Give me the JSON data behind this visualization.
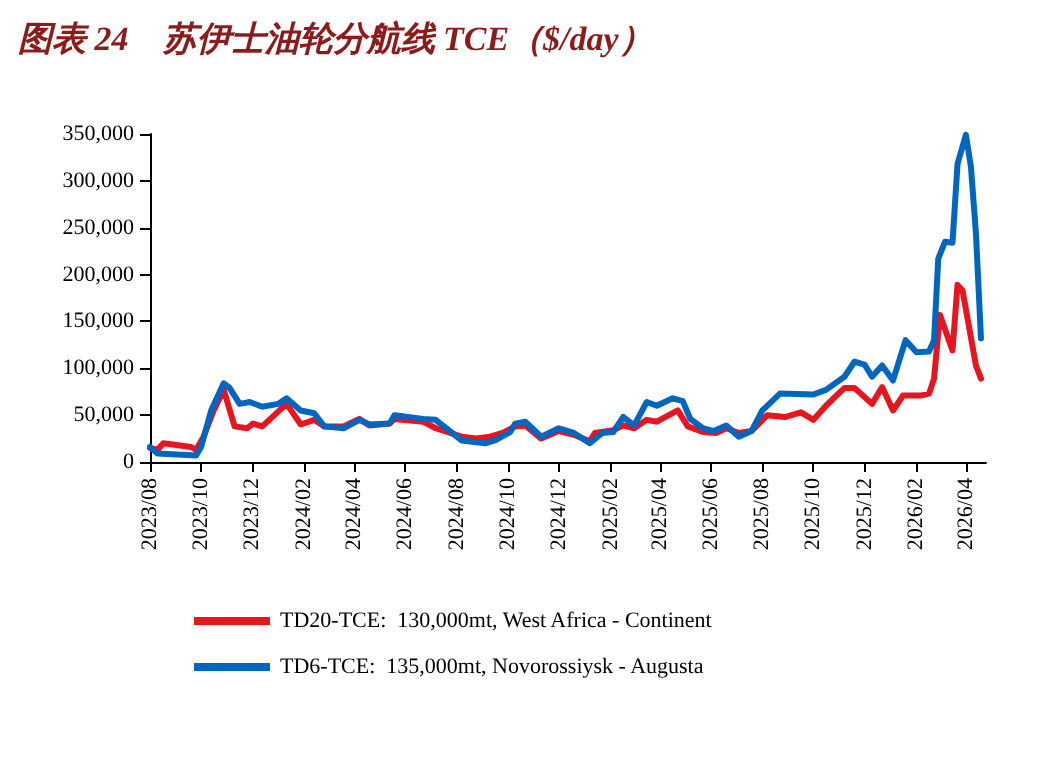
{
  "chart_data": {
    "type": "line",
    "title": "图表 24　苏伊士油轮分航线 TCE（$/day）",
    "xlim": [
      "2023-08-01",
      "2026-04-25"
    ],
    "xticks": [
      {
        "value": "2023-08",
        "label": "2023/08"
      },
      {
        "value": "2023-10",
        "label": "2023/10"
      },
      {
        "value": "2023-12",
        "label": "2023/12"
      },
      {
        "value": "2024-02",
        "label": "2024/02"
      },
      {
        "value": "2024-04",
        "label": "2024/04"
      },
      {
        "value": "2024-06",
        "label": "2024/06"
      },
      {
        "value": "2024-08",
        "label": "2024/08"
      },
      {
        "value": "2024-10",
        "label": "2024/10"
      },
      {
        "value": "2024-12",
        "label": "2024/12"
      },
      {
        "value": "2025-02",
        "label": "2025/02"
      },
      {
        "value": "2025-04",
        "label": "2025/04"
      },
      {
        "value": "2025-06",
        "label": "2025/06"
      },
      {
        "value": "2025-08",
        "label": "2025/08"
      },
      {
        "value": "2025-10",
        "label": "2025/10"
      },
      {
        "value": "2025-12",
        "label": "2025/12"
      },
      {
        "value": "2026-02",
        "label": "2026/02"
      },
      {
        "value": "2026-04",
        "label": "2026/04"
      }
    ],
    "ylim": [
      0,
      350000
    ],
    "yticks": [
      0,
      {
        "value": 50000,
        "label": "50,000"
      },
      {
        "value": 100000,
        "label": "100,000"
      },
      {
        "value": 150000,
        "label": "150,000"
      },
      {
        "value": 200000,
        "label": "200,000"
      },
      {
        "value": 250000,
        "label": "250,000"
      },
      {
        "value": 300000,
        "label": "300,000"
      },
      {
        "value": 350000,
        "label": "350,000"
      }
    ],
    "grid": false,
    "legend": "bottom",
    "marker": "none",
    "line_style": "solid",
    "series": [
      {
        "name": "TD20-TCE:  130,000mt, West Africa - Continent",
        "color": "#e8141e",
        "x": [
          "2023-08-01",
          "2023-08-10",
          "2023-08-17",
          "2023-09-19",
          "2023-09-25",
          "2023-10-04",
          "2023-10-16",
          "2023-10-28",
          "2023-11-10",
          "2023-11-25",
          "2023-12-02",
          "2023-12-13",
          "2024-01-11",
          "2024-01-28",
          "2024-02-13",
          "2024-02-25",
          "2024-03-19",
          "2024-04-07",
          "2024-04-19",
          "2024-05-13",
          "2024-05-19",
          "2024-06-22",
          "2024-07-07",
          "2024-08-07",
          "2024-08-25",
          "2024-09-10",
          "2024-09-25",
          "2024-10-10",
          "2024-10-22",
          "2024-11-10",
          "2024-12-01",
          "2024-12-19",
          "2025-01-07",
          "2025-01-13",
          "2025-02-04",
          "2025-02-16",
          "2025-03-01",
          "2025-03-16",
          "2025-03-28",
          "2025-04-22",
          "2025-05-04",
          "2025-05-22",
          "2025-06-07",
          "2025-06-19",
          "2025-07-04",
          "2025-07-19",
          "2025-08-07",
          "2025-08-28",
          "2025-09-16",
          "2025-10-01",
          "2025-10-16",
          "2025-11-07",
          "2025-11-19",
          "2025-12-10",
          "2025-12-22",
          "2026-01-04",
          "2026-01-16",
          "2026-02-07",
          "2026-02-16",
          "2026-02-22",
          "2026-03-01",
          "2026-03-16",
          "2026-03-22",
          "2026-03-28",
          "2026-04-13",
          "2026-04-19"
        ],
        "values": [
          15000,
          13000,
          20000,
          16000,
          13000,
          27000,
          55000,
          77000,
          38000,
          36000,
          41000,
          38000,
          62000,
          40000,
          45000,
          38000,
          38000,
          46000,
          39000,
          41000,
          46000,
          43000,
          36000,
          27000,
          25000,
          27000,
          31000,
          38000,
          39000,
          25000,
          33000,
          29000,
          22000,
          31000,
          34000,
          39000,
          36000,
          45000,
          43000,
          55000,
          38000,
          32000,
          31000,
          36000,
          31000,
          33000,
          50000,
          48000,
          53000,
          45000,
          60000,
          79000,
          79000,
          62000,
          80000,
          55000,
          71000,
          71000,
          73000,
          89000,
          157000,
          119000,
          189000,
          183000,
          103000,
          89000
        ]
      },
      {
        "name": "TD6-TCE:  135,000mt, Novorossiysk - Augusta",
        "color": "#0066c0",
        "x": [
          "2023-08-01",
          "2023-08-10",
          "2023-09-25",
          "2023-10-01",
          "2023-10-13",
          "2023-10-28",
          "2023-11-04",
          "2023-11-16",
          "2023-11-28",
          "2023-12-13",
          "2024-01-01",
          "2024-01-11",
          "2024-01-28",
          "2024-02-13",
          "2024-02-25",
          "2024-03-19",
          "2024-04-07",
          "2024-04-19",
          "2024-05-13",
          "2024-05-19",
          "2024-06-22",
          "2024-07-07",
          "2024-08-07",
          "2024-09-04",
          "2024-09-16",
          "2024-10-04",
          "2024-10-10",
          "2024-10-22",
          "2024-11-10",
          "2024-12-01",
          "2024-12-19",
          "2025-01-07",
          "2025-01-22",
          "2025-02-04",
          "2025-02-16",
          "2025-03-01",
          "2025-03-16",
          "2025-03-28",
          "2025-04-16",
          "2025-04-28",
          "2025-05-07",
          "2025-05-22",
          "2025-06-04",
          "2025-06-19",
          "2025-07-04",
          "2025-07-19",
          "2025-08-01",
          "2025-08-22",
          "2025-10-01",
          "2025-10-16",
          "2025-11-07",
          "2025-11-19",
          "2025-12-01",
          "2025-12-10",
          "2025-12-22",
          "2026-01-04",
          "2026-01-19",
          "2026-02-01",
          "2026-02-16",
          "2026-02-22",
          "2026-02-27",
          "2026-03-07",
          "2026-03-16",
          "2026-03-22",
          "2026-04-01",
          "2026-04-07",
          "2026-04-13",
          "2026-04-19"
        ],
        "values": [
          16000,
          9000,
          7000,
          16000,
          55000,
          84000,
          79000,
          62000,
          64000,
          59000,
          62000,
          68000,
          55000,
          52000,
          38000,
          36000,
          45000,
          40000,
          41000,
          50000,
          46000,
          45000,
          23000,
          20000,
          23000,
          32000,
          41000,
          43000,
          27000,
          36000,
          31000,
          20000,
          31000,
          32000,
          48000,
          39000,
          64000,
          60000,
          68000,
          65000,
          46000,
          36000,
          33000,
          39000,
          27000,
          33000,
          55000,
          73000,
          72000,
          77000,
          91000,
          107000,
          104000,
          91000,
          103000,
          87000,
          130000,
          117000,
          118000,
          130000,
          217000,
          235000,
          234000,
          318000,
          349000,
          315000,
          244000,
          132000
        ]
      }
    ]
  }
}
